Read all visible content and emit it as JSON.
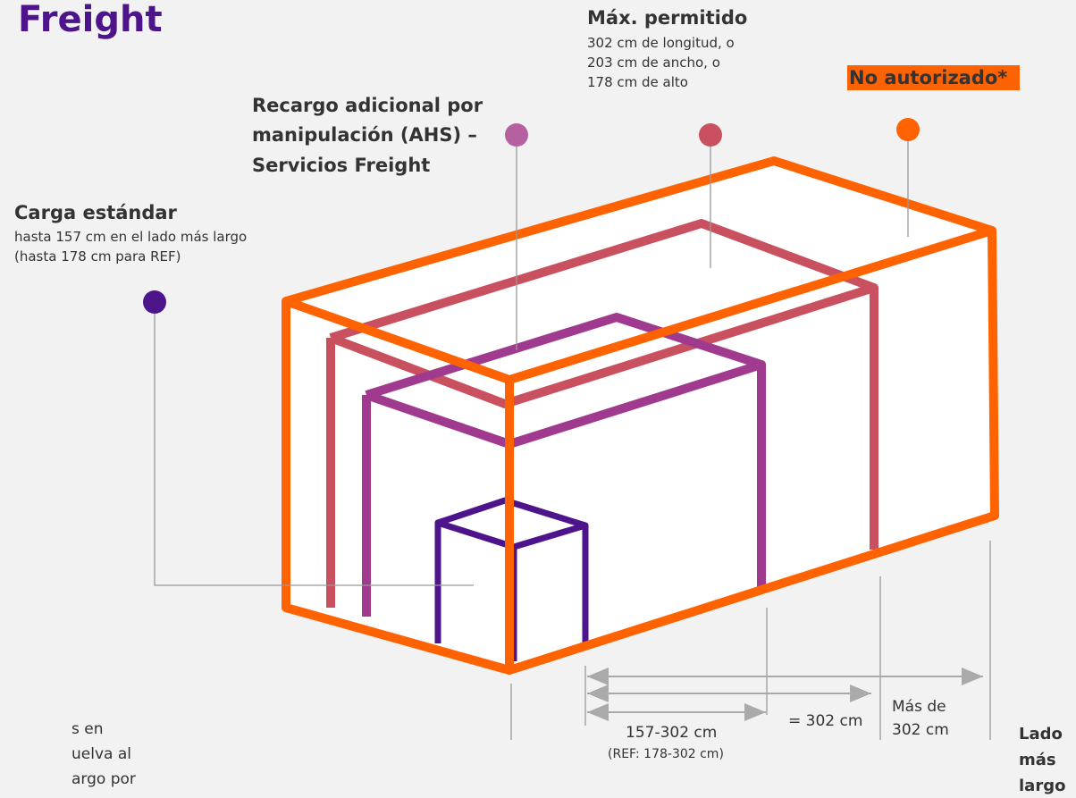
{
  "title": "Freight",
  "max_allowed": {
    "title": "Máx. permitido",
    "lines": [
      "302 cm de longitud, o",
      "203 cm de ancho, o",
      "178 cm de alto"
    ]
  },
  "not_authorized": "No autorizado*",
  "ahs": {
    "lines": [
      "Recargo adicional por",
      "manipulación (AHS) –",
      "Servicios Freight"
    ]
  },
  "standard": {
    "title": "Carga estándar",
    "lines": [
      "hasta 157 cm en el lado más largo",
      "(hasta 178 cm para REF)"
    ]
  },
  "footnote": [
    "s en",
    "uelva al",
    "argo por"
  ],
  "dimensions": {
    "range": "157-302 cm",
    "range_ref": "(REF: 178-302 cm)",
    "equal": "= 302 cm",
    "over": [
      "Más de",
      "302 cm"
    ]
  },
  "axis_label": [
    "Lado",
    "más",
    "largo"
  ]
}
